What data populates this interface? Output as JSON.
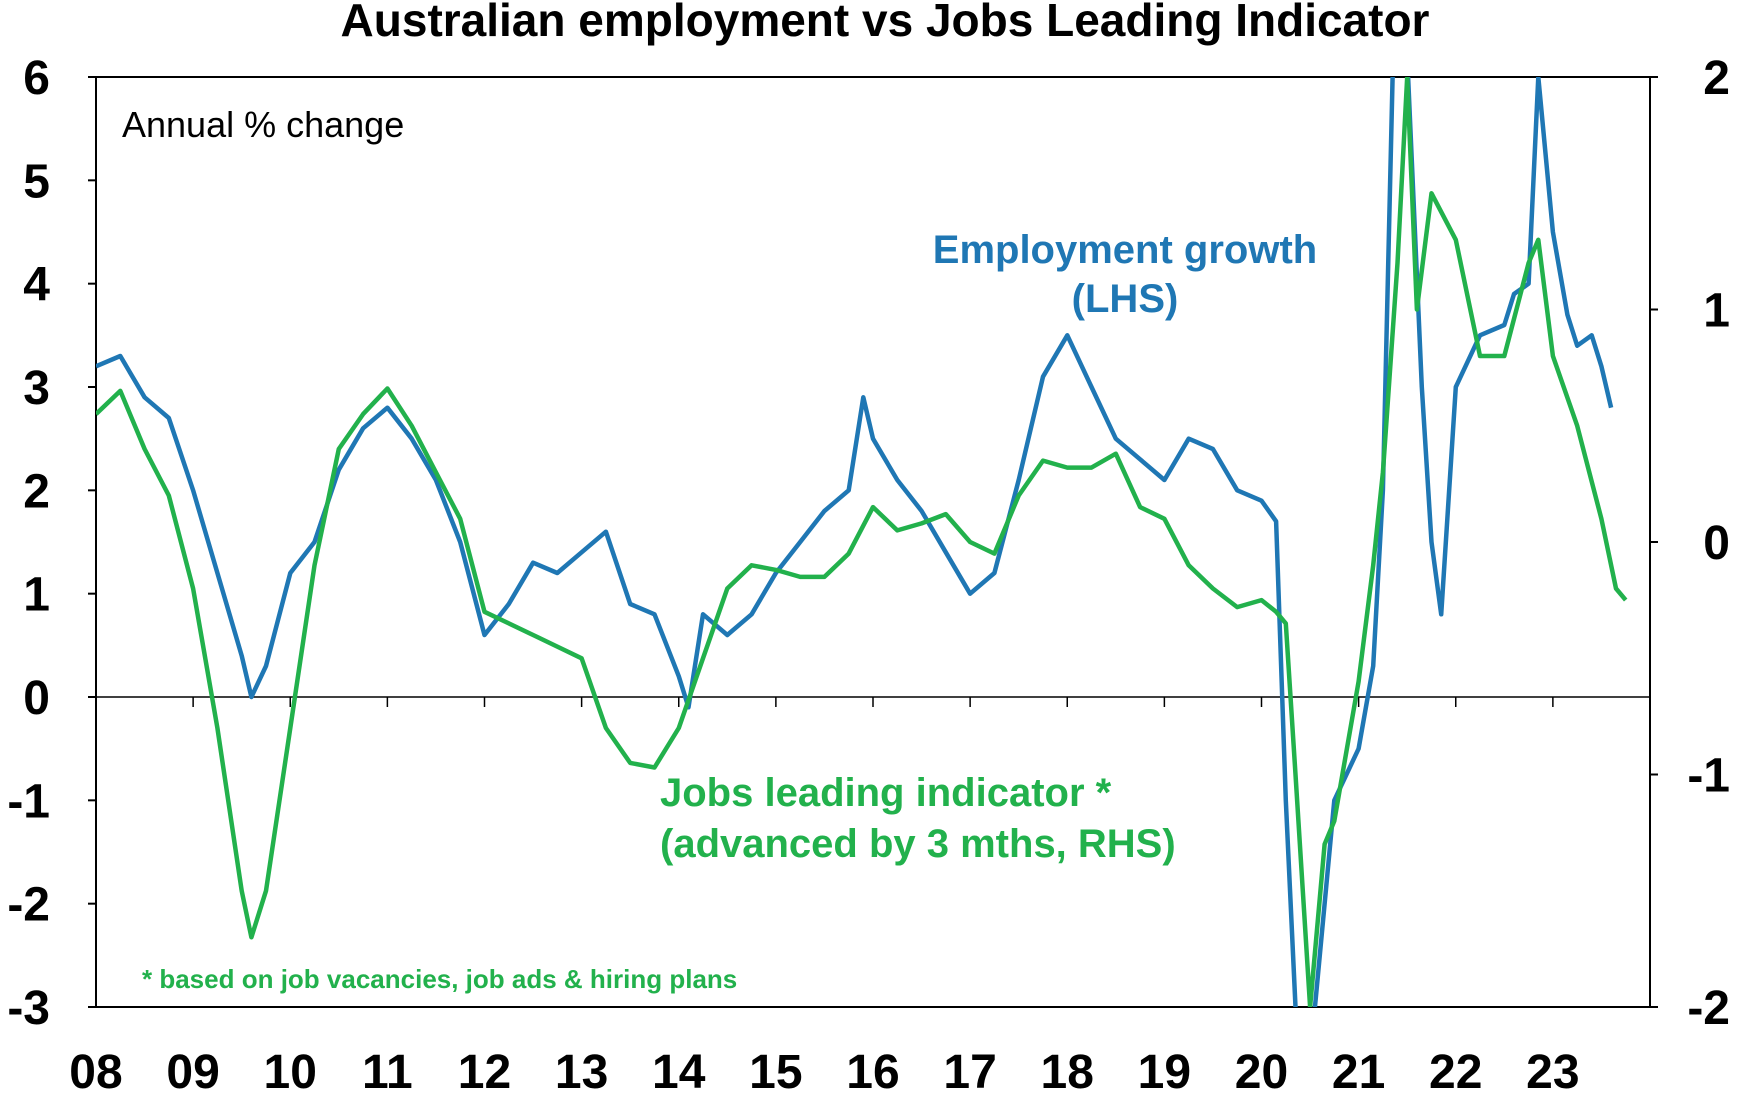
{
  "chart_data": {
    "type": "line",
    "title": "Australian employment vs Jobs Leading Indicator",
    "subtitle": "Annual % change",
    "x_tick_labels": [
      "08",
      "09",
      "10",
      "11",
      "12",
      "13",
      "14",
      "15",
      "16",
      "17",
      "18",
      "19",
      "20",
      "21",
      "22",
      "23"
    ],
    "x_range": [
      2008.0,
      2024.0
    ],
    "y_left": {
      "ticks": [
        "6",
        "5",
        "4",
        "3",
        "2",
        "1",
        "0",
        "-1",
        "-2",
        "-3"
      ],
      "range": [
        -3,
        6
      ]
    },
    "y_right": {
      "ticks": [
        "2",
        "1",
        "0",
        "-1",
        "-2"
      ],
      "range": [
        -2,
        2
      ]
    },
    "annotations": {
      "employment_line1": "Employment growth",
      "employment_line2": "(LHS)",
      "jli_line1": "Jobs leading indicator *",
      "jli_line2": "(advanced by 3 mths, RHS)",
      "footnote": "* based on job vacancies, job ads & hiring plans"
    },
    "colors": {
      "employment": "#1f77b4",
      "jli": "#22b14c"
    },
    "series": [
      {
        "axis": "left",
        "x": [
          2008.0,
          2008.25,
          2008.5,
          2008.75,
          2009.0,
          2009.25,
          2009.5,
          2009.6,
          2009.75,
          2010.0,
          2010.25,
          2010.5,
          2010.75,
          2011.0,
          2011.25,
          2011.5,
          2011.75,
          2012.0,
          2012.25,
          2012.5,
          2012.75,
          2013.0,
          2013.25,
          2013.5,
          2013.75,
          2014.0,
          2014.1,
          2014.25,
          2014.5,
          2014.75,
          2015.0,
          2015.25,
          2015.5,
          2015.75,
          2015.9,
          2016.0,
          2016.25,
          2016.5,
          2016.75,
          2017.0,
          2017.25,
          2017.5,
          2017.75,
          2018.0,
          2018.25,
          2018.5,
          2018.75,
          2019.0,
          2019.25,
          2019.5,
          2019.75,
          2020.0,
          2020.15,
          2020.25,
          2020.35,
          2020.5,
          2020.6,
          2020.75,
          2021.0,
          2021.15,
          2021.25,
          2021.35,
          2021.5,
          2021.65,
          2021.75,
          2021.85,
          2022.0,
          2022.25,
          2022.5,
          2022.6,
          2022.75,
          2022.85,
          2023.0,
          2023.15,
          2023.25,
          2023.4,
          2023.5,
          2023.6
        ],
        "values": [
          3.2,
          3.3,
          2.9,
          2.7,
          2.0,
          1.2,
          0.4,
          0.0,
          0.3,
          1.2,
          1.5,
          2.2,
          2.6,
          2.8,
          2.5,
          2.1,
          1.5,
          0.6,
          0.9,
          1.3,
          1.2,
          1.4,
          1.6,
          0.9,
          0.8,
          0.2,
          -0.1,
          0.8,
          0.6,
          0.8,
          1.2,
          1.5,
          1.8,
          2.0,
          2.9,
          2.5,
          2.1,
          1.8,
          1.4,
          1.0,
          1.2,
          2.1,
          3.1,
          3.5,
          3.0,
          2.5,
          2.3,
          2.1,
          2.5,
          2.4,
          2.0,
          1.9,
          1.7,
          -1.0,
          -3.0,
          -3.5,
          -2.5,
          -1.0,
          -0.5,
          0.3,
          2.0,
          6.0,
          6.2,
          3.0,
          1.5,
          0.8,
          3.0,
          3.5,
          3.6,
          3.9,
          4.0,
          6.0,
          4.5,
          3.7,
          3.4,
          3.5,
          3.2,
          2.8
        ]
      },
      {
        "axis": "right",
        "x": [
          2008.0,
          2008.25,
          2008.5,
          2008.75,
          2009.0,
          2009.25,
          2009.5,
          2009.6,
          2009.75,
          2010.0,
          2010.25,
          2010.5,
          2010.75,
          2011.0,
          2011.25,
          2011.5,
          2011.75,
          2012.0,
          2012.25,
          2012.5,
          2012.75,
          2013.0,
          2013.25,
          2013.5,
          2013.75,
          2014.0,
          2014.25,
          2014.5,
          2014.75,
          2015.0,
          2015.25,
          2015.5,
          2015.75,
          2016.0,
          2016.25,
          2016.5,
          2016.75,
          2017.0,
          2017.25,
          2017.5,
          2017.75,
          2018.0,
          2018.25,
          2018.5,
          2018.75,
          2019.0,
          2019.25,
          2019.5,
          2019.75,
          2020.0,
          2020.15,
          2020.25,
          2020.35,
          2020.5,
          2020.65,
          2020.75,
          2021.0,
          2021.15,
          2021.25,
          2021.4,
          2021.5,
          2021.6,
          2021.75,
          2022.0,
          2022.25,
          2022.5,
          2022.75,
          2022.85,
          2023.0,
          2023.25,
          2023.5,
          2023.65,
          2023.75
        ],
        "values": [
          0.55,
          0.65,
          0.4,
          0.2,
          -0.2,
          -0.8,
          -1.5,
          -1.7,
          -1.5,
          -0.8,
          -0.1,
          0.4,
          0.55,
          0.66,
          0.5,
          0.3,
          0.1,
          -0.3,
          -0.35,
          -0.4,
          -0.45,
          -0.5,
          -0.8,
          -0.95,
          -0.97,
          -0.8,
          -0.5,
          -0.2,
          -0.1,
          -0.12,
          -0.15,
          -0.15,
          -0.05,
          0.15,
          0.05,
          0.08,
          0.12,
          0.0,
          -0.05,
          0.2,
          0.35,
          0.32,
          0.32,
          0.38,
          0.15,
          0.1,
          -0.1,
          -0.2,
          -0.28,
          -0.25,
          -0.3,
          -0.35,
          -1.0,
          -2.0,
          -1.3,
          -1.2,
          -0.6,
          -0.1,
          0.3,
          1.2,
          2.0,
          1.0,
          1.5,
          1.3,
          0.8,
          0.8,
          1.2,
          1.3,
          0.8,
          0.5,
          0.1,
          -0.2,
          -0.25
        ]
      }
    ]
  }
}
